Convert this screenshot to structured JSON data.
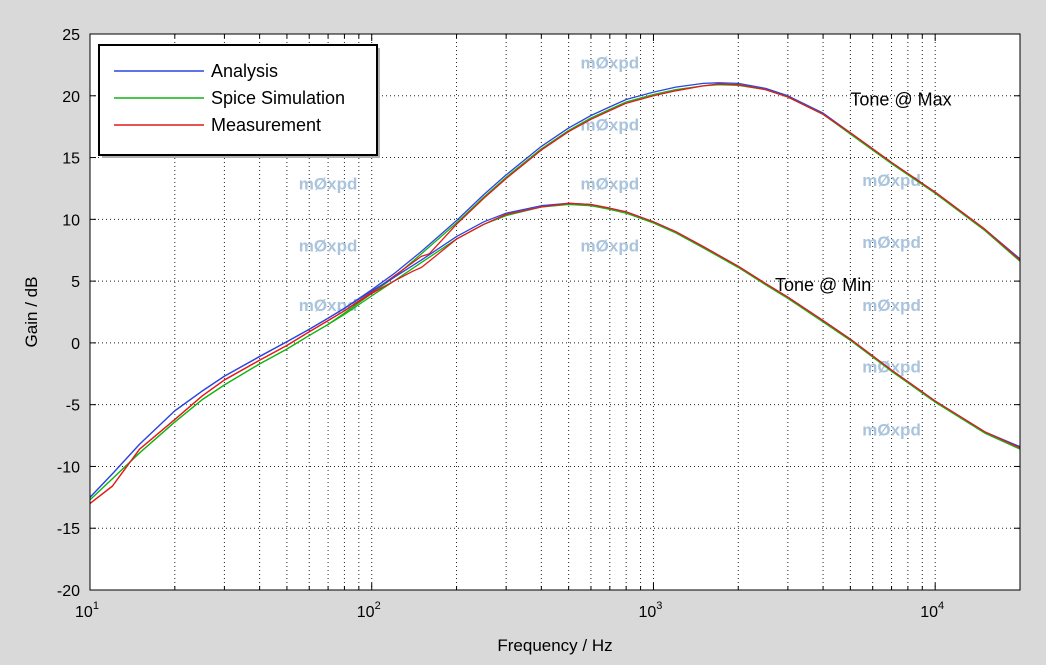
{
  "chart_data": {
    "type": "line",
    "xscale": "log",
    "xlim": [
      10,
      20000
    ],
    "ylim": [
      -20,
      25
    ],
    "grid": true,
    "xlabel": "Frequency   / Hz",
    "ylabel": "Gain   / dB",
    "x_ticks": [
      {
        "value": 10,
        "base": "10",
        "exp": "1"
      },
      {
        "value": 100,
        "base": "10",
        "exp": "2"
      },
      {
        "value": 1000,
        "base": "10",
        "exp": "3"
      },
      {
        "value": 10000,
        "base": "10",
        "exp": "4"
      }
    ],
    "y_ticks": [
      -20,
      -15,
      -10,
      -5,
      0,
      5,
      10,
      15,
      20,
      25
    ],
    "legend_position": "top-left",
    "legend": [
      "Analysis",
      "Spice Simulation",
      "Measurement"
    ],
    "colors": {
      "Analysis": "#2b45e0",
      "Spice Simulation": "#12b412",
      "Measurement": "#e41a1a",
      "background": "#d9d9d9",
      "plot_area": "#ffffff",
      "watermark": "#a9c4dc"
    },
    "annotations": [
      {
        "text": "Tone @ Max",
        "x": 5000,
        "y": 19.2
      },
      {
        "text": "Tone @ Min",
        "x": 2700,
        "y": 4.2
      }
    ],
    "watermark": {
      "text": "mØxpd",
      "marks": [
        {
          "x": 700,
          "y": 22.2
        },
        {
          "x": 700,
          "y": 17.2
        },
        {
          "x": 700,
          "y": 12.4
        },
        {
          "x": 700,
          "y": 7.4
        },
        {
          "x": 70,
          "y": 12.4
        },
        {
          "x": 70,
          "y": 7.4
        },
        {
          "x": 70,
          "y": 2.6
        },
        {
          "x": 7000,
          "y": 12.7
        },
        {
          "x": 7000,
          "y": 7.7
        },
        {
          "x": 7000,
          "y": 2.6
        },
        {
          "x": 7000,
          "y": -2.4
        },
        {
          "x": 7000,
          "y": -7.5
        }
      ]
    },
    "series": [
      {
        "name": "Analysis",
        "group": "Tone @ Max",
        "x": [
          10,
          12,
          15,
          20,
          25,
          30,
          40,
          50,
          60,
          70,
          80,
          100,
          120,
          150,
          200,
          250,
          300,
          400,
          500,
          600,
          700,
          800,
          1000,
          1200,
          1500,
          1700,
          2000,
          2500,
          3000,
          4000,
          5000,
          7000,
          10000,
          15000,
          20000
        ],
        "y": [
          -12.5,
          -10.6,
          -8.2,
          -5.5,
          -3.9,
          -2.7,
          -1.1,
          0.1,
          1.1,
          2.0,
          2.8,
          4.3,
          5.6,
          7.4,
          9.9,
          12.0,
          13.6,
          15.9,
          17.4,
          18.4,
          19.1,
          19.7,
          20.3,
          20.7,
          21.0,
          21.05,
          21.0,
          20.6,
          20.0,
          18.6,
          17.0,
          14.6,
          12.2,
          9.2,
          6.8
        ]
      },
      {
        "name": "Spice Simulation",
        "group": "Tone @ Max",
        "x": [
          10,
          12,
          15,
          20,
          25,
          30,
          40,
          50,
          60,
          70,
          80,
          100,
          120,
          150,
          200,
          250,
          300,
          400,
          500,
          600,
          700,
          800,
          1000,
          1200,
          1500,
          1700,
          2000,
          2500,
          3000,
          4000,
          5000,
          7000,
          10000,
          15000,
          20000
        ],
        "y": [
          -12.7,
          -11.0,
          -8.9,
          -6.4,
          -4.6,
          -3.4,
          -1.7,
          -0.5,
          0.6,
          1.5,
          2.4,
          4.0,
          5.3,
          7.2,
          9.7,
          11.8,
          13.4,
          15.7,
          17.2,
          18.2,
          18.9,
          19.5,
          20.1,
          20.5,
          20.8,
          20.9,
          20.85,
          20.5,
          19.9,
          18.5,
          16.9,
          14.5,
          12.1,
          9.1,
          6.6
        ]
      },
      {
        "name": "Measurement",
        "group": "Tone @ Max",
        "x": [
          10,
          12,
          15,
          20,
          25,
          30,
          40,
          50,
          60,
          70,
          80,
          100,
          120,
          150,
          160,
          200,
          250,
          300,
          400,
          500,
          600,
          700,
          800,
          1000,
          1200,
          1500,
          1700,
          2000,
          2500,
          3000,
          4000,
          5000,
          7000,
          10000,
          15000,
          20000
        ],
        "y": [
          -13.0,
          -11.6,
          -8.6,
          -6.2,
          -4.3,
          -3.0,
          -1.4,
          -0.2,
          0.9,
          1.8,
          2.6,
          4.1,
          5.4,
          7.0,
          7.2,
          9.6,
          11.7,
          13.3,
          15.6,
          17.1,
          18.1,
          18.8,
          19.4,
          20.0,
          20.4,
          20.8,
          20.95,
          20.9,
          20.5,
          19.9,
          18.5,
          17.0,
          14.6,
          12.2,
          9.2,
          6.7
        ]
      },
      {
        "name": "Analysis",
        "group": "Tone @ Min",
        "x": [
          10,
          12,
          15,
          20,
          25,
          30,
          40,
          50,
          60,
          70,
          80,
          100,
          120,
          150,
          200,
          250,
          300,
          400,
          500,
          600,
          700,
          800,
          1000,
          1200,
          1500,
          2000,
          2500,
          3000,
          4000,
          5000,
          7000,
          10000,
          15000,
          20000
        ],
        "y": [
          -12.5,
          -10.6,
          -8.2,
          -5.5,
          -3.9,
          -2.7,
          -1.1,
          0.1,
          1.1,
          2.0,
          2.8,
          4.2,
          5.3,
          6.7,
          8.6,
          9.8,
          10.5,
          11.1,
          11.3,
          11.2,
          10.9,
          10.6,
          9.8,
          9.0,
          7.8,
          6.2,
          4.8,
          3.7,
          1.8,
          0.3,
          -2.2,
          -4.7,
          -7.2,
          -8.4
        ]
      },
      {
        "name": "Spice Simulation",
        "group": "Tone @ Min",
        "x": [
          10,
          12,
          15,
          20,
          25,
          30,
          40,
          50,
          60,
          70,
          80,
          100,
          120,
          150,
          200,
          250,
          300,
          400,
          500,
          600,
          700,
          800,
          1000,
          1200,
          1500,
          2000,
          2500,
          3000,
          4000,
          5000,
          7000,
          10000,
          15000,
          20000
        ],
        "y": [
          -12.7,
          -11.0,
          -8.9,
          -6.4,
          -4.6,
          -3.4,
          -1.7,
          -0.5,
          0.6,
          1.5,
          2.3,
          3.8,
          5.0,
          6.5,
          8.4,
          9.6,
          10.3,
          11.0,
          11.2,
          11.1,
          10.8,
          10.5,
          9.7,
          8.9,
          7.7,
          6.1,
          4.7,
          3.6,
          1.7,
          0.2,
          -2.3,
          -4.8,
          -7.3,
          -8.6
        ]
      },
      {
        "name": "Measurement",
        "group": "Tone @ Min",
        "x": [
          10,
          12,
          15,
          20,
          25,
          30,
          40,
          50,
          60,
          70,
          80,
          100,
          120,
          140,
          150,
          160,
          200,
          250,
          300,
          400,
          500,
          600,
          700,
          800,
          1000,
          1200,
          1500,
          2000,
          2500,
          3000,
          4000,
          5000,
          7000,
          10000,
          15000,
          20000
        ],
        "y": [
          -13.0,
          -11.6,
          -8.6,
          -6.2,
          -4.3,
          -3.0,
          -1.4,
          -0.2,
          0.9,
          1.8,
          2.6,
          4.0,
          5.0,
          5.8,
          6.1,
          6.6,
          8.4,
          9.6,
          10.4,
          11.0,
          11.3,
          11.2,
          10.9,
          10.6,
          9.8,
          9.0,
          7.8,
          6.2,
          4.8,
          3.7,
          1.8,
          0.3,
          -2.2,
          -4.7,
          -7.2,
          -8.5
        ]
      }
    ]
  }
}
